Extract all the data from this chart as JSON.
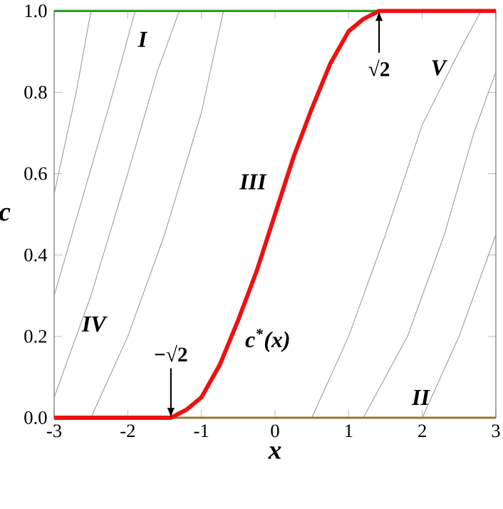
{
  "chart_data": {
    "type": "line",
    "xlabel": "x",
    "ylabel": "c",
    "xlim": [
      -3,
      3
    ],
    "ylim": [
      0,
      1.0
    ],
    "xticks": [
      -3,
      -2,
      -1,
      0,
      1,
      2,
      3
    ],
    "yticks": [
      {
        "value": 0,
        "label": "0.0"
      },
      {
        "value": 0.2,
        "label": "0.2"
      },
      {
        "value": 0.4,
        "label": "0.4"
      },
      {
        "value": 0.6,
        "label": "0.6"
      },
      {
        "value": 0.8,
        "label": "0.8"
      },
      {
        "value": 1.0,
        "label": "1.0"
      }
    ],
    "grid": false,
    "marker": "none",
    "series": [
      {
        "color": "#999999",
        "x": [
          -3,
          -2.5,
          -2,
          -1.6,
          -1.3
        ],
        "values": [
          0.05,
          0.3,
          0.6,
          0.85,
          1.0
        ]
      },
      {
        "color": "#999999",
        "x": [
          -3,
          -2.6,
          -2.2,
          -1.9
        ],
        "values": [
          0.3,
          0.55,
          0.8,
          1.0
        ]
      },
      {
        "color": "#999999",
        "x": [
          -3,
          -2.7,
          -2.5
        ],
        "values": [
          0.55,
          0.8,
          1.0
        ]
      },
      {
        "color": "#999999",
        "x": [
          -2.5,
          -2.0,
          -1.5,
          -1.0,
          -0.7
        ],
        "values": [
          0,
          0.2,
          0.45,
          0.75,
          1.0
        ]
      },
      {
        "color": "#999999",
        "x": [
          0.5,
          1.0,
          1.5,
          2.0,
          2.5,
          2.8
        ],
        "values": [
          0,
          0.2,
          0.45,
          0.72,
          0.9,
          1.0
        ]
      },
      {
        "color": "#999999",
        "x": [
          1.2,
          1.8,
          2.3,
          2.7,
          3
        ],
        "values": [
          0,
          0.2,
          0.45,
          0.7,
          0.85
        ]
      },
      {
        "color": "#999999",
        "x": [
          2.0,
          2.5,
          3
        ],
        "values": [
          0,
          0.2,
          0.45
        ]
      },
      {
        "color": "#2ca02c",
        "x": [
          -3,
          1.414
        ],
        "values": [
          1.0,
          1.0
        ]
      },
      {
        "color": "#a0703c",
        "x": [
          -1.414,
          3
        ],
        "values": [
          0,
          0
        ]
      },
      {
        "color": "#ee1111",
        "x": [
          -3,
          -1.414,
          -1.2,
          -1,
          -0.75,
          -0.5,
          -0.25,
          0,
          0.25,
          0.5,
          0.75,
          1,
          1.2,
          1.414,
          3
        ],
        "values": [
          0,
          0,
          0.02,
          0.05,
          0.13,
          0.24,
          0.36,
          0.5,
          0.64,
          0.76,
          0.87,
          0.95,
          0.98,
          1.0,
          1.0
        ]
      }
    ],
    "annotations": [
      "I",
      "II",
      "III",
      "IV",
      "V",
      {
        "text": "c$^{*}$(x)",
        "x": -0.6,
        "y": 0.19
      },
      {
        "text": "−√2",
        "x": -1.414,
        "y": 0
      },
      {
        "text": "√2",
        "x": 1.414,
        "y": 1.0
      }
    ]
  }
}
